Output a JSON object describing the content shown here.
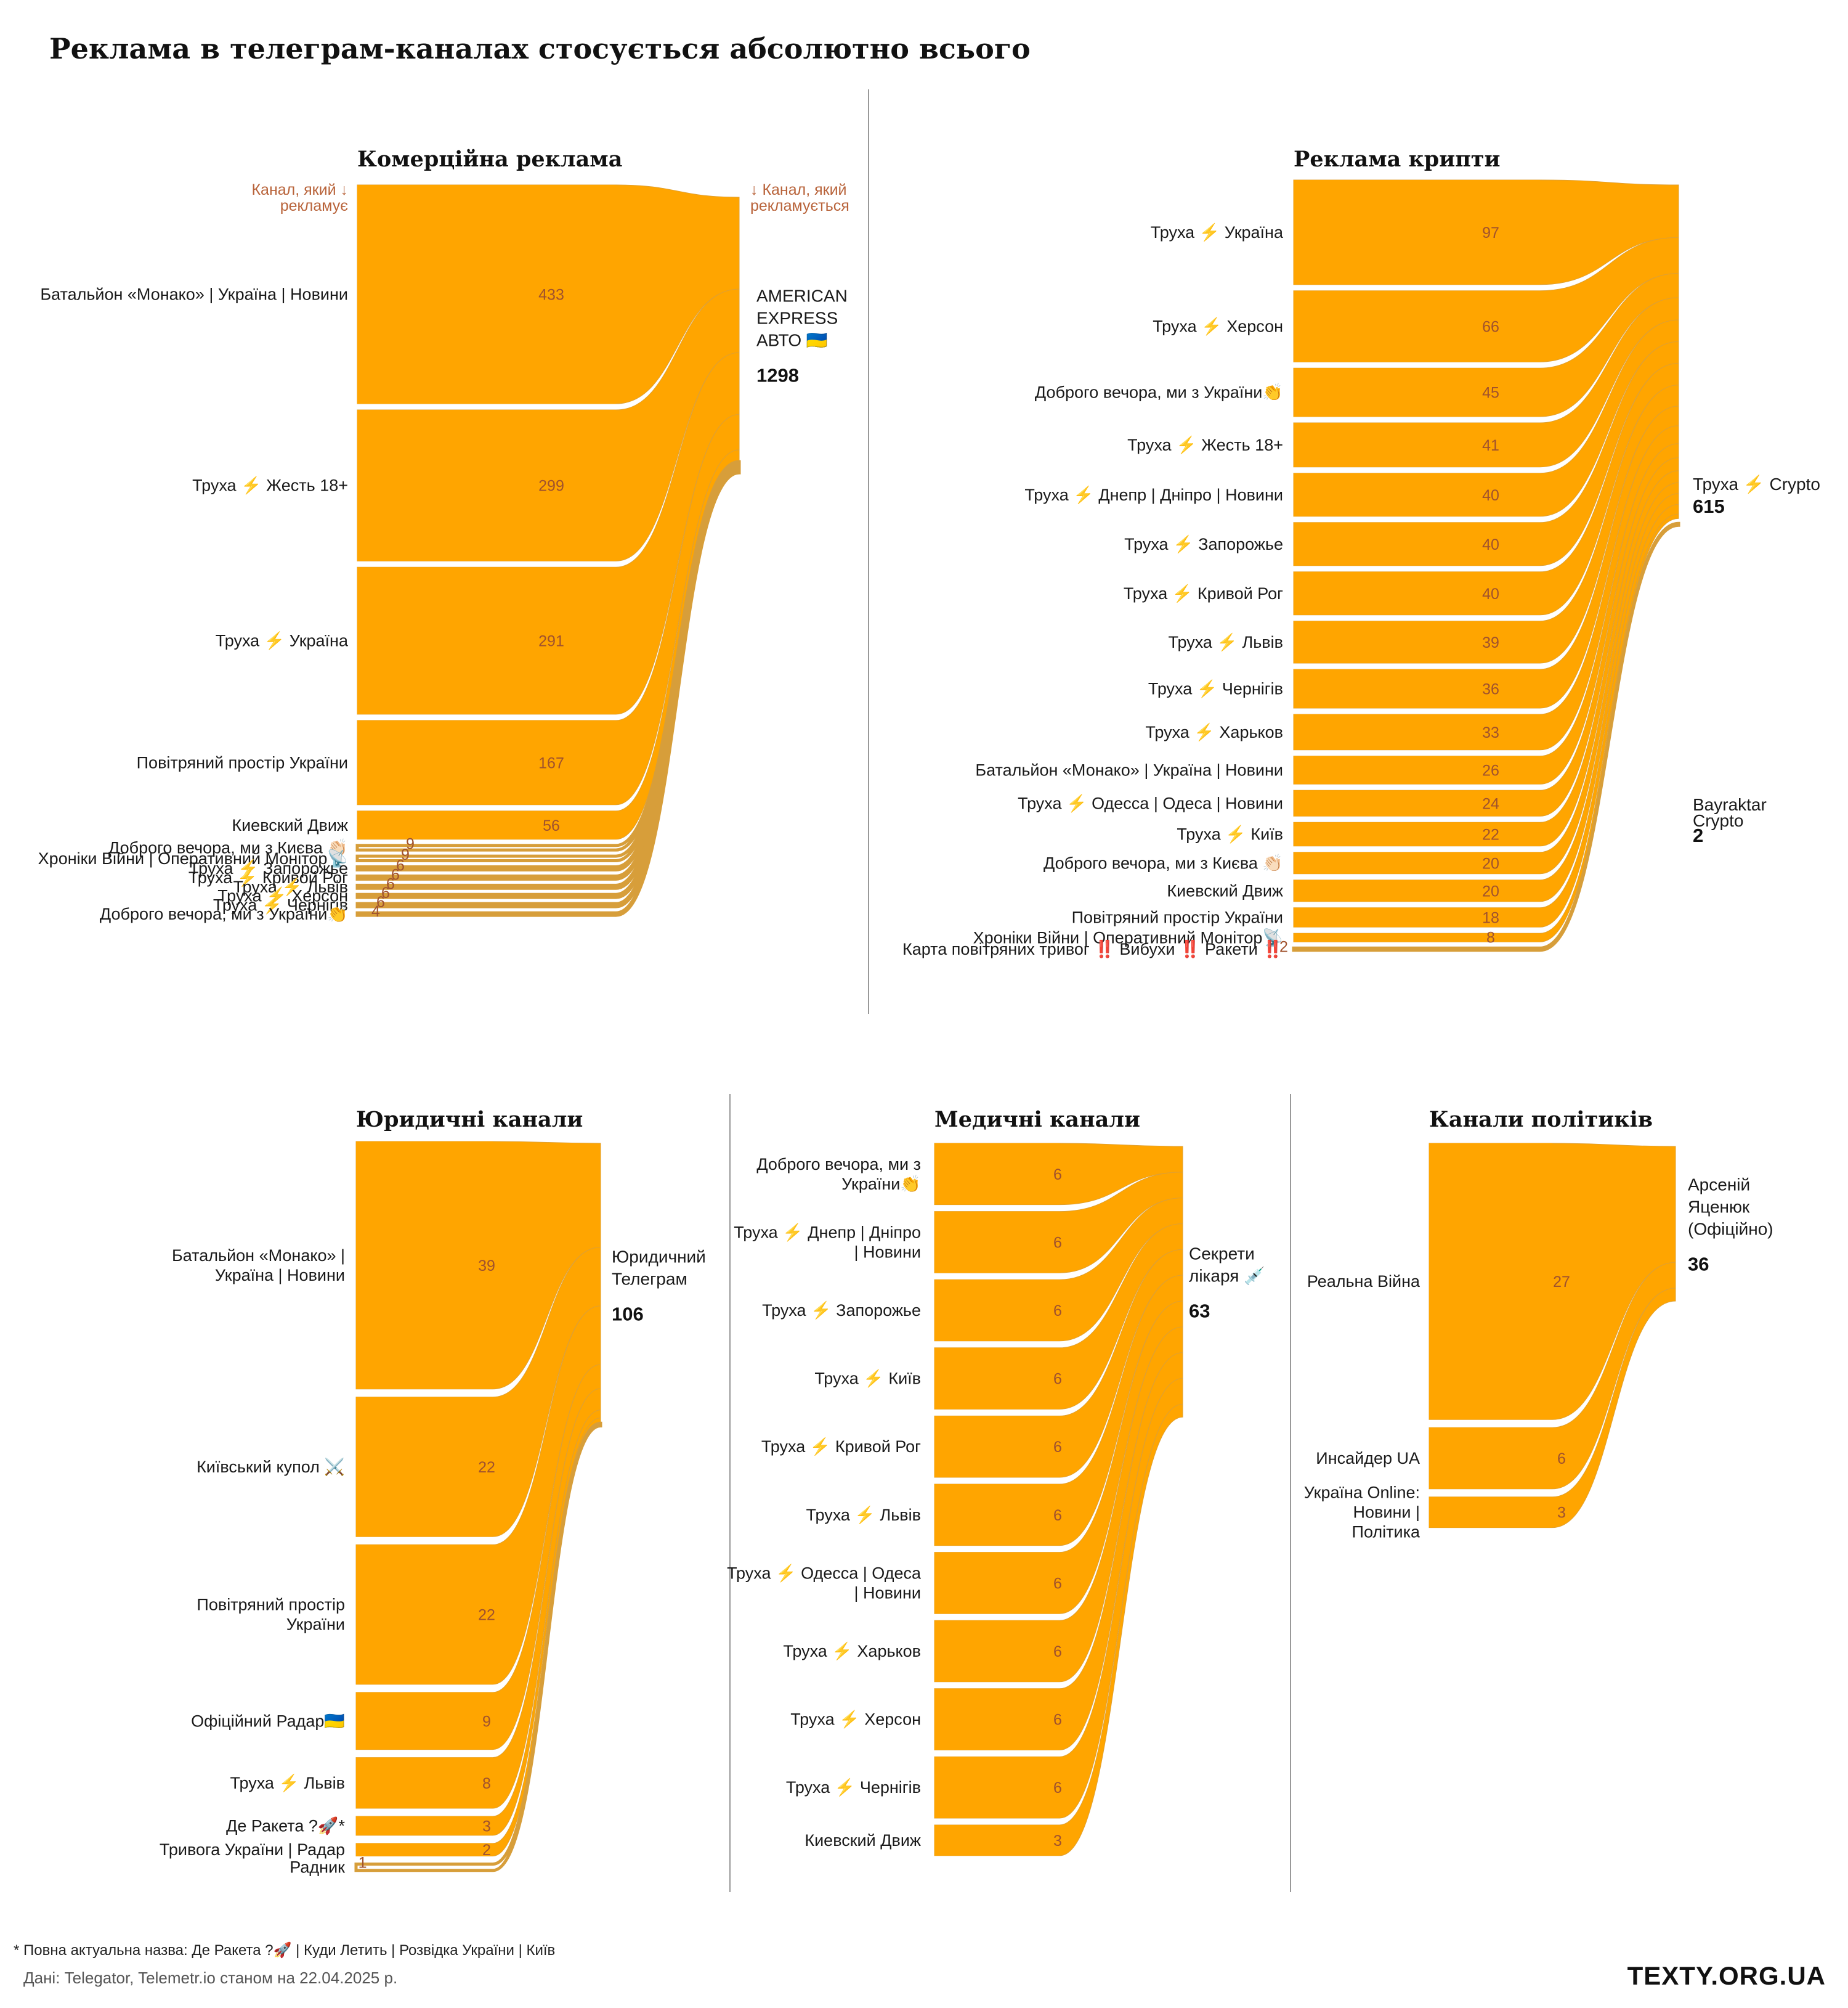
{
  "title": "Реклама в телеграм-каналах стосується абсолютно всього",
  "footnote": "* Повна актуальна назва: Де Ракета ?🚀 | Куди Летить | Розвідка України | Київ",
  "source": "Дані: Telegator, Telemetr.io станом на 22.04.2025 р.",
  "brand": "TEXTY.ORG.UA",
  "colors": {
    "flow": "#FFA500",
    "link": "#D79E3A",
    "value": "#A0522D",
    "note": "#B8633A"
  },
  "notes": {
    "source_col": "Канал, який ↓\nрекламує",
    "target_col": "↓ Канал, який\nрекламується"
  },
  "chart_data": [
    {
      "type": "sankey",
      "title": "Комерційна реклама",
      "target": "AMERICAN\nEXPRESS\nАВТО 🇺🇦",
      "total": 1298,
      "sources": [
        {
          "name": "Батальйон «Монако» | Україна | Новини",
          "value": 433
        },
        {
          "name": "Труха ⚡ Жесть 18+",
          "value": 299
        },
        {
          "name": "Труха ⚡ Україна",
          "value": 291
        },
        {
          "name": "Повітряний простір України",
          "value": 167
        },
        {
          "name": "Киевский Движ",
          "value": 56
        },
        {
          "name": "Доброго вечора, ми з Києва 👏🏻",
          "value": 9
        },
        {
          "name": "Хроніки Війни | Оперативний Монітор📡",
          "value": 9
        },
        {
          "name": "Труха ⚡ Запорожье",
          "value": 6
        },
        {
          "name": "Труха ⚡ Кривой Рог",
          "value": 6
        },
        {
          "name": "Труха ⚡ Львів",
          "value": 6
        },
        {
          "name": "Труха ⚡ Херсон",
          "value": 6
        },
        {
          "name": "Труха ⚡ Чернігів",
          "value": 6
        },
        {
          "name": "Доброго вечора, ми з України👏",
          "value": 4
        }
      ]
    },
    {
      "type": "sankey",
      "title": "Реклама крипти",
      "targets": [
        {
          "name": "Труха ⚡ Crypto",
          "total": 615
        },
        {
          "name": "Bayraktar\nCrypto",
          "total": 2
        }
      ],
      "sources": [
        {
          "name": "Труха ⚡ Україна",
          "value": 97
        },
        {
          "name": "Труха ⚡ Херсон",
          "value": 66
        },
        {
          "name": "Доброго вечора, ми з України👏",
          "value": 45
        },
        {
          "name": "Труха ⚡ Жесть 18+",
          "value": 41
        },
        {
          "name": "Труха ⚡ Днепр | Дніпро | Новини",
          "value": 40
        },
        {
          "name": "Труха ⚡ Запорожье",
          "value": 40
        },
        {
          "name": "Труха ⚡ Кривой Рог",
          "value": 40
        },
        {
          "name": "Труха ⚡ Львів",
          "value": 39
        },
        {
          "name": "Труха ⚡ Чернігів",
          "value": 36
        },
        {
          "name": "Труха ⚡ Харьков",
          "value": 33
        },
        {
          "name": "Батальйон «Монако» | Україна | Новини",
          "value": 26
        },
        {
          "name": "Труха ⚡ Одесса | Одеса | Новини",
          "value": 24
        },
        {
          "name": "Труха ⚡ Київ",
          "value": 22
        },
        {
          "name": "Доброго вечора, ми з Києва 👏🏻",
          "value": 20
        },
        {
          "name": "Киевский Движ",
          "value": 20
        },
        {
          "name": "Повітряний простір України",
          "value": 18
        },
        {
          "name": "Хроніки Війни | Оперативний Монітор📡",
          "value": 8
        },
        {
          "name": "Карта повітряних тривог ‼️ Вибухи ‼️ Ракети ‼️",
          "value": 2
        }
      ]
    },
    {
      "type": "sankey",
      "title": "Юридичні канали",
      "target": "Юридичний\nТелеграм",
      "total": 106,
      "sources": [
        {
          "name": "Батальйон «Монако» |\nУкраїна | Новини",
          "value": 39
        },
        {
          "name": "Київський купол ⚔️",
          "value": 22
        },
        {
          "name": "Повітряний простір\nУкраїни",
          "value": 22
        },
        {
          "name": "Офіційний Радар🇺🇦",
          "value": 9
        },
        {
          "name": "Труха ⚡ Львів",
          "value": 8
        },
        {
          "name": "Де Ракета ?🚀*",
          "value": 3
        },
        {
          "name": "Тривога України | Радар",
          "value": 2
        },
        {
          "name": "Радник",
          "value": 1
        }
      ]
    },
    {
      "type": "sankey",
      "title": "Медичні канали",
      "target": "Секрети\nлікаря 💉",
      "total": 63,
      "sources": [
        {
          "name": "Доброго вечора, ми з\nУкраїни👏",
          "value": 6
        },
        {
          "name": "Труха ⚡ Днепр | Дніпро\n| Новини",
          "value": 6
        },
        {
          "name": "Труха ⚡ Запорожье",
          "value": 6
        },
        {
          "name": "Труха ⚡ Київ",
          "value": 6
        },
        {
          "name": "Труха ⚡ Кривой Рог",
          "value": 6
        },
        {
          "name": "Труха ⚡ Львів",
          "value": 6
        },
        {
          "name": "Труха ⚡ Одесса | Одеса\n| Новини",
          "value": 6
        },
        {
          "name": "Труха ⚡ Харьков",
          "value": 6
        },
        {
          "name": "Труха ⚡ Херсон",
          "value": 6
        },
        {
          "name": "Труха ⚡ Чернігів",
          "value": 6
        },
        {
          "name": "Киевский Движ",
          "value": 3
        }
      ]
    },
    {
      "type": "sankey",
      "title": "Канали політиків",
      "target": "Арсеній\nЯценюк\n(Офіційно)",
      "total": 36,
      "sources": [
        {
          "name": "Реальна Війна",
          "value": 27
        },
        {
          "name": "Инсайдер UA",
          "value": 6
        },
        {
          "name": "Україна Online:\nНовини |\nПолітика",
          "value": 3
        }
      ]
    }
  ]
}
